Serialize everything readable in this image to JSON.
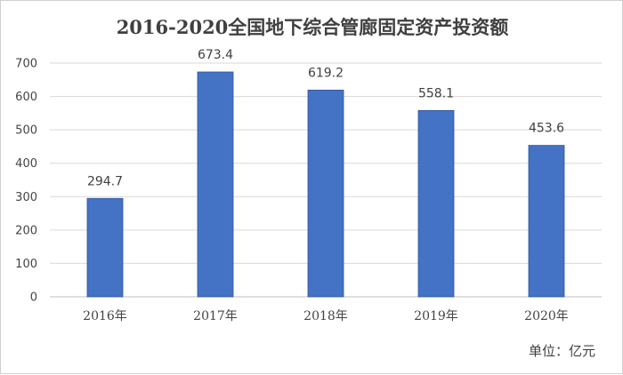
{
  "chart_data": {
    "type": "bar",
    "title": "2016-2020全国地下综合管廊固定资产投资额",
    "unit_label": "单位：亿元",
    "categories": [
      "2016年",
      "2017年",
      "2018年",
      "2019年",
      "2020年"
    ],
    "values": [
      294.7,
      673.4,
      619.2,
      558.1,
      453.6
    ],
    "data_labels": [
      "294.7",
      "673.4",
      "619.2",
      "558.1",
      "453.6"
    ],
    "y_ticks": [
      0,
      100,
      200,
      300,
      400,
      500,
      600,
      700
    ],
    "ylim": [
      0,
      700
    ],
    "grid": true,
    "legend": "none",
    "colors": {
      "bar": "#4472c4",
      "bar_edge": "#2f5597",
      "grid": "#d9d9d9",
      "axis": "#bfbfbf"
    }
  }
}
